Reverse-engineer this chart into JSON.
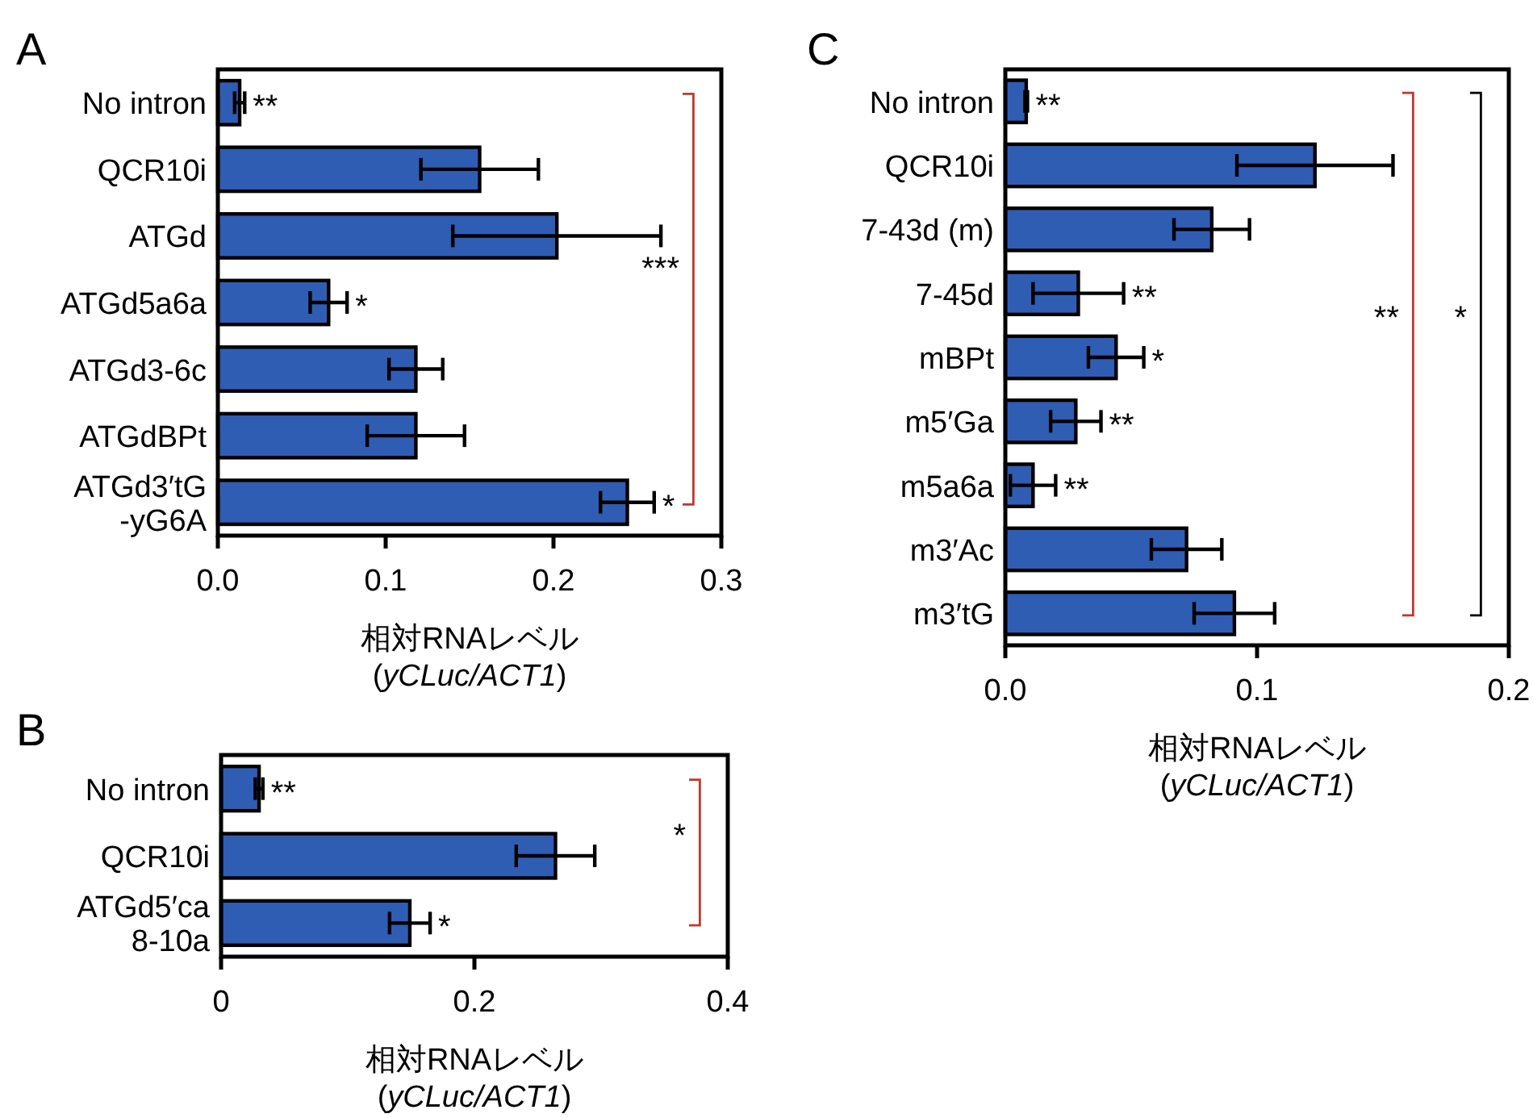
{
  "chart_data": [
    {
      "type": "bar",
      "orientation": "horizontal",
      "title": "A",
      "xlabel": "相対RNAレベル (*yCLuc/ACT1*)",
      "color": "#2f5db4",
      "categories": [
        "No intron",
        "QCR10i",
        "ATGd",
        "ATGd5a6a",
        "ATGd3-6c",
        "ATGdBPt",
        "ATGd3′tG -yG6A"
      ],
      "values": [
        0.013,
        0.156,
        0.202,
        0.066,
        0.118,
        0.118,
        0.244
      ],
      "errors": [
        0.003,
        0.035,
        0.062,
        0.011,
        0.016,
        0.029,
        0.016
      ],
      "value_labels": [
        "**",
        null,
        null,
        "*",
        null,
        null,
        "*"
      ],
      "xlim": [
        0,
        0.3
      ],
      "xticks": [
        {
          "value": 0,
          "label": "0.0"
        },
        0.1,
        0.2,
        0.3
      ],
      "annotations": [
        "***"
      ]
    },
    {
      "type": "bar",
      "orientation": "horizontal",
      "title": "B",
      "xlabel": "相対RNAレベル (*yCLuc/ACT1*)",
      "color": "#2f5db4",
      "categories": [
        "No intron",
        "QCR10i",
        "ATGd5′ca 8-10a"
      ],
      "values": [
        0.03,
        0.264,
        0.149
      ],
      "errors": [
        0.003,
        0.031,
        0.016
      ],
      "value_labels": [
        "**",
        null,
        "*"
      ],
      "xlim": [
        0,
        0.4
      ],
      "xticks": [
        0,
        0.2,
        0.4
      ],
      "annotations": [
        "*"
      ]
    },
    {
      "type": "bar",
      "orientation": "horizontal",
      "title": "C",
      "xlabel": "相対RNAレベル (*yCLuc/ACT1*)",
      "color": "#2f5db4",
      "categories": [
        "No intron",
        "QCR10i",
        "7-43d (m)",
        "7-45d",
        "mBPt",
        "m5′Ga",
        "m5a6a",
        "m3′Ac",
        "m3′tG"
      ],
      "values": [
        0.0083,
        0.123,
        0.082,
        0.029,
        0.044,
        0.028,
        0.011,
        0.072,
        0.091
      ],
      "errors": [
        0.0005,
        0.031,
        0.015,
        0.018,
        0.011,
        0.01,
        0.009,
        0.014,
        0.016
      ],
      "value_labels": [
        "**",
        null,
        null,
        "**",
        "*",
        "**",
        "**",
        null,
        null
      ],
      "xlim": [
        0,
        0.2
      ],
      "xticks": [
        {
          "value": 0,
          "label": "0.0"
        },
        0.1,
        0.2
      ],
      "annotations": [
        "**",
        "*"
      ]
    }
  ]
}
